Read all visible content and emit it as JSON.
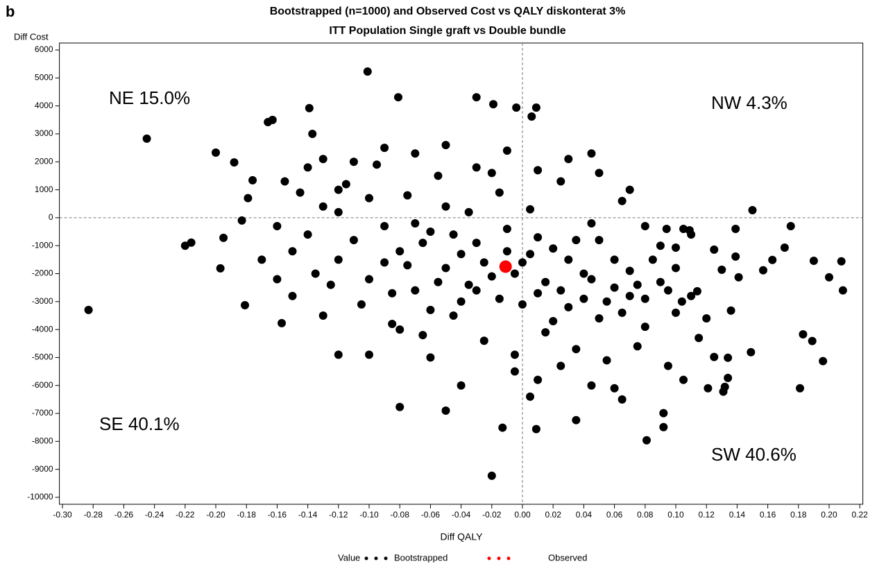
{
  "panel_label": "b",
  "chart_data": {
    "type": "scatter",
    "title": "Bootstrapped (n=1000) and Observed Cost vs QALY diskonterat 3%",
    "subtitle": "ITT Population Single graft vs Double bundle",
    "x_label": "Diff QALY",
    "y_label": "Diff Cost",
    "legend_title": "Value",
    "annotations": [
      "NE 15.0%",
      "NW 4.3%",
      "SE 40.1%",
      "SW 40.6%"
    ],
    "xlim": [
      -0.302,
      0.222
    ],
    "ylim": [
      -10250,
      6250
    ],
    "xticks": [
      {
        "value": -0.3,
        "label": "-0.30"
      },
      -0.28,
      -0.26,
      -0.24,
      -0.22,
      {
        "value": -0.2,
        "label": "-0.20"
      },
      -0.18,
      -0.16,
      -0.14,
      -0.12,
      {
        "value": -0.1,
        "label": "-0.10"
      },
      -0.08,
      -0.06,
      -0.04,
      -0.02,
      {
        "value": 0,
        "label": "0.00"
      },
      0.02,
      0.04,
      0.06,
      0.08,
      {
        "value": 0.1,
        "label": "0.10"
      },
      0.12,
      0.14,
      0.16,
      0.18,
      {
        "value": 0.2,
        "label": "0.20"
      },
      0.22
    ],
    "yticks": [
      6000,
      5000,
      4000,
      3000,
      2000,
      1000,
      0,
      -1000,
      -2000,
      -3000,
      -4000,
      -5000,
      -6000,
      -7000,
      -8000,
      -9000,
      -10000
    ],
    "series": [
      {
        "name": "Bootstrapped",
        "color": "#000000",
        "x": [
          -0.283,
          -0.245,
          -0.2,
          -0.188,
          -0.176,
          -0.179,
          -0.183,
          -0.181,
          -0.197,
          -0.195,
          -0.22,
          -0.216,
          -0.157,
          -0.139,
          -0.137,
          -0.166,
          -0.163,
          -0.101,
          -0.081,
          -0.03,
          -0.019,
          -0.004,
          0.009,
          0.006,
          -0.08,
          -0.02,
          -0.013,
          0.009,
          0.035,
          0.081,
          0.092,
          0.092,
          0.134,
          0.149,
          0.175,
          0.19,
          0.208,
          0.209,
          0.2,
          0.196,
          0.181,
          0.183,
          0.189,
          0.171,
          0.15,
          0.139,
          0.139,
          0.141,
          0.136,
          0.134,
          0.132,
          0.105,
          0.109,
          0.094,
          0.1,
          0.125,
          0.13,
          0.157,
          0.163,
          0.121,
          0.131,
          0.105,
          0.125,
          0.104,
          0.114,
          -0.12,
          -0.11,
          -0.1,
          -0.09,
          -0.08,
          -0.07,
          -0.06,
          -0.05,
          -0.04,
          -0.03,
          -0.02,
          -0.01,
          0.0,
          0.01,
          0.02,
          0.03,
          0.04,
          0.05,
          0.06,
          0.07,
          0.08,
          0.09,
          -0.13,
          -0.115,
          -0.095,
          -0.075,
          -0.055,
          -0.035,
          -0.015,
          0.005,
          0.025,
          0.045,
          0.065,
          -0.125,
          -0.105,
          -0.085,
          -0.065,
          -0.045,
          -0.025,
          -0.005,
          0.015,
          0.035,
          0.055,
          0.075,
          0.095,
          -0.14,
          -0.15,
          -0.16,
          -0.145,
          -0.135,
          -0.12,
          -0.1,
          -0.09,
          -0.07,
          -0.06,
          -0.05,
          -0.04,
          -0.03,
          -0.02,
          -0.01,
          0.0,
          0.01,
          0.02,
          0.03,
          0.04,
          0.05,
          0.06,
          0.07,
          0.08,
          0.1,
          0.11,
          0.12,
          0.115,
          -0.11,
          -0.09,
          -0.07,
          -0.05,
          -0.03,
          -0.01,
          0.01,
          0.03,
          0.05,
          0.07,
          0.045,
          -0.085,
          -0.075,
          -0.065,
          -0.055,
          -0.045,
          -0.035,
          -0.025,
          -0.015,
          -0.005,
          0.005,
          0.015,
          0.025,
          0.035,
          0.045,
          0.055,
          0.065,
          0.075,
          0.085,
          0.095,
          -0.005,
          0.01,
          0.025,
          0.045,
          0.06,
          0.065,
          -0.04,
          -0.05,
          0.005,
          -0.06,
          -0.08,
          -0.1,
          -0.12,
          -0.13,
          -0.15,
          -0.17,
          -0.16,
          -0.155,
          -0.14,
          -0.13,
          -0.12,
          0.08,
          0.09,
          0.1,
          0.11
        ],
        "values": [
          -3300,
          2830,
          2330,
          1980,
          1340,
          700,
          -100,
          -3130,
          -1810,
          -720,
          -1000,
          -890,
          -3770,
          3920,
          3000,
          3420,
          3500,
          5230,
          4310,
          4310,
          4060,
          3940,
          3940,
          3620,
          -6770,
          -9230,
          -7510,
          -7560,
          -7240,
          -7960,
          -6990,
          -7490,
          -5730,
          -4810,
          -300,
          -1540,
          -1560,
          -2600,
          -2130,
          -5130,
          -6100,
          -4170,
          -4410,
          -1070,
          270,
          -400,
          -1390,
          -2130,
          -3320,
          -5010,
          -6050,
          -400,
          -450,
          -400,
          -1070,
          -1140,
          -1860,
          -1880,
          -1510,
          -6100,
          -6220,
          -5800,
          -4980,
          -3000,
          -2630,
          -1500,
          -800,
          -2200,
          -300,
          -1200,
          -2600,
          -500,
          -1800,
          -3000,
          -900,
          -2100,
          -400,
          -1600,
          -2700,
          -1100,
          -3200,
          -2000,
          -3600,
          -1500,
          -2800,
          -3900,
          -2300,
          400,
          1200,
          1900,
          800,
          1500,
          200,
          900,
          300,
          1300,
          -200,
          600,
          -2400,
          -3100,
          -3800,
          -4200,
          -3500,
          -4400,
          -4900,
          -4100,
          -4700,
          -5100,
          -4600,
          -5300,
          -600,
          -1200,
          -300,
          900,
          -2000,
          200,
          700,
          -1600,
          -200,
          -3300,
          400,
          -1300,
          -2600,
          1600,
          -1200,
          -3100,
          -700,
          -3700,
          -1500,
          -2900,
          -800,
          -2500,
          -1900,
          -2900,
          -3400,
          -2800,
          -3600,
          -4300,
          2000,
          2500,
          2300,
          2600,
          1800,
          2400,
          1700,
          2100,
          1600,
          1000,
          2300,
          -2700,
          -1700,
          -900,
          -2300,
          -600,
          -2400,
          -1600,
          -2900,
          -2000,
          -1300,
          -2300,
          -2600,
          -800,
          -2200,
          -3000,
          -3400,
          -2400,
          -1500,
          -2600,
          -5500,
          -5800,
          -5300,
          -6000,
          -6100,
          -6500,
          -6000,
          -6900,
          -6400,
          -5000,
          -4000,
          -4900,
          -4900,
          -3500,
          -2800,
          -1500,
          -2200,
          1300,
          1800,
          2100,
          1000,
          -300,
          -1000,
          -1800,
          -600
        ]
      },
      {
        "name": "Observed",
        "color": "#ff0000",
        "x": [
          -0.011
        ],
        "values": [
          -1750
        ]
      }
    ]
  }
}
